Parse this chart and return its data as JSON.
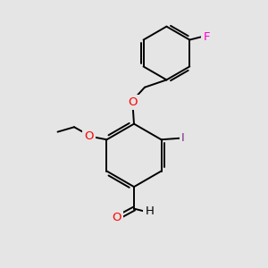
{
  "background_color": "#e5e5e5",
  "bond_color": "#000000",
  "bond_width": 1.4,
  "atom_colors": {
    "O": "#ff0000",
    "F": "#ff00cc",
    "I": "#800080",
    "H": "#000000",
    "C": "#000000"
  },
  "fig_width": 3.0,
  "fig_height": 3.0,
  "dpi": 100
}
